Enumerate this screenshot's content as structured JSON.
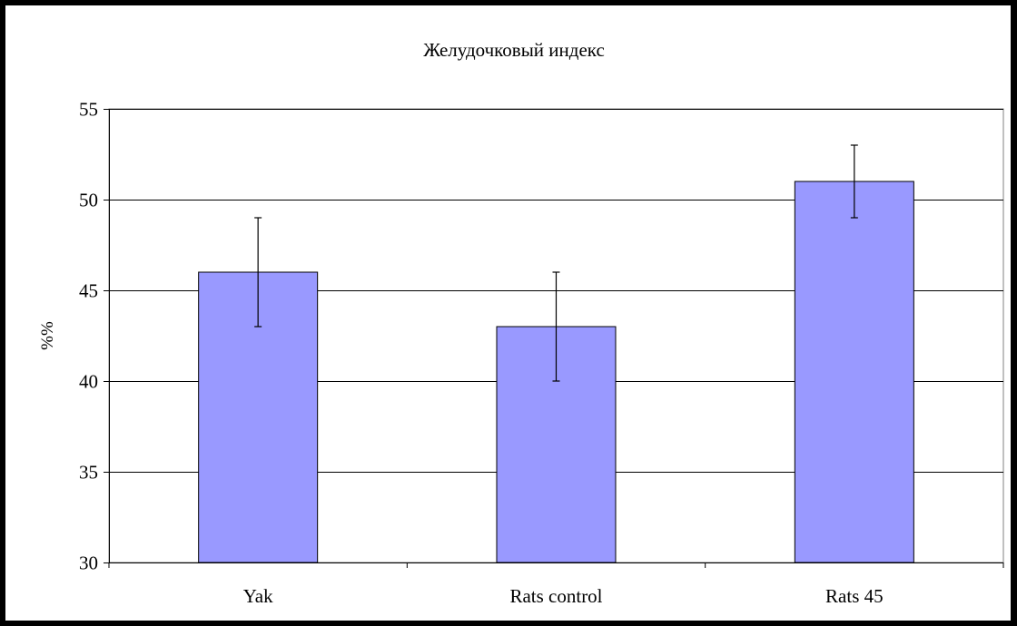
{
  "chart_data": {
    "type": "bar",
    "title": "Желудочковый индекс",
    "xlabel": "",
    "ylabel": "%%",
    "categories": [
      "Yak",
      "Rats control",
      "Rats 45"
    ],
    "series": [
      {
        "values": [
          46,
          43,
          51
        ],
        "error": [
          3,
          3,
          2
        ]
      }
    ],
    "ylim": [
      30,
      55
    ],
    "yticks": [
      30,
      35,
      40,
      45,
      50,
      55
    ],
    "grid": true,
    "legend": "none",
    "bar_color": "#9999ff",
    "bar_stroke": "#000000",
    "plot_background": "#ffffff"
  }
}
